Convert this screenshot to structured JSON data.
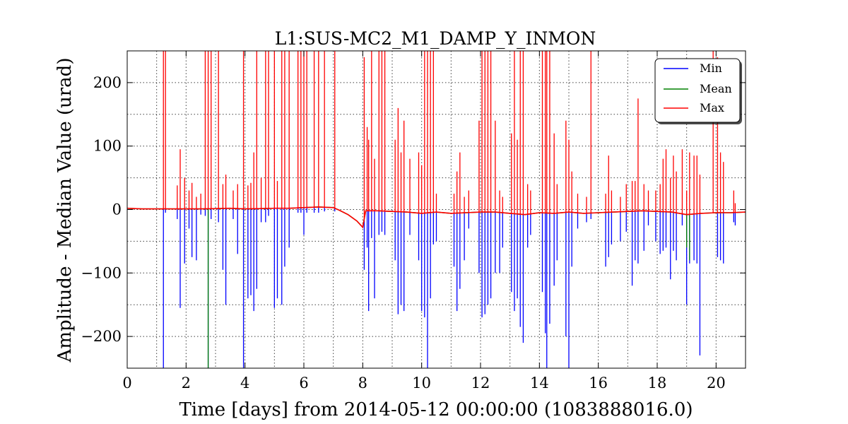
{
  "chart_data": {
    "type": "line",
    "title": "L1:SUS-MC2_M1_DAMP_Y_INMON",
    "xlabel": "Time [days] from 2014-05-12 00:00:00 (1083888016.0)",
    "ylabel": "Amplitude - Median Value (urad)",
    "xlim": [
      0,
      21
    ],
    "ylim": [
      -250,
      250
    ],
    "grid": true,
    "legend_position": "top-right",
    "x_ticks": [
      0,
      2,
      4,
      6,
      8,
      10,
      12,
      14,
      16,
      18,
      20
    ],
    "y_ticks": [
      -200,
      -100,
      0,
      100,
      200
    ],
    "y_tick_labels": [
      "−200",
      "−100",
      "0",
      "100",
      "200"
    ],
    "series": [
      {
        "name": "Min",
        "color": "#0000ff"
      },
      {
        "name": "Mean",
        "color": "#008000"
      },
      {
        "name": "Max",
        "color": "#ff0000"
      }
    ],
    "baseline": [
      [
        0,
        2
      ],
      [
        0.5,
        1
      ],
      [
        1,
        1
      ],
      [
        1.5,
        1
      ],
      [
        2,
        1
      ],
      [
        2.5,
        1
      ],
      [
        3,
        1.5
      ],
      [
        3.5,
        2
      ],
      [
        4,
        1
      ],
      [
        4.5,
        1.5
      ],
      [
        5,
        2
      ],
      [
        5.5,
        2
      ],
      [
        6,
        3
      ],
      [
        6.5,
        4
      ],
      [
        7,
        3
      ],
      [
        7.2,
        -1
      ],
      [
        7.5,
        -8
      ],
      [
        7.8,
        -18
      ],
      [
        8,
        -28
      ],
      [
        8.1,
        -2
      ],
      [
        8.5,
        -2
      ],
      [
        9,
        -3
      ],
      [
        9.5,
        -4
      ],
      [
        10,
        -6
      ],
      [
        10.5,
        -4
      ],
      [
        11,
        -6
      ],
      [
        11.5,
        -5
      ],
      [
        12,
        -4
      ],
      [
        12.5,
        -4
      ],
      [
        13,
        -6
      ],
      [
        13.5,
        -8
      ],
      [
        14,
        -5
      ],
      [
        14.5,
        -6
      ],
      [
        15,
        -4
      ],
      [
        15.5,
        -6
      ],
      [
        16,
        -5
      ],
      [
        16.5,
        -4
      ],
      [
        17,
        -3
      ],
      [
        17.5,
        -2
      ],
      [
        18,
        -3
      ],
      [
        18.5,
        -4
      ],
      [
        19,
        -8
      ],
      [
        19.5,
        -6
      ],
      [
        20,
        -5
      ],
      [
        20.5,
        -5
      ],
      [
        21,
        -4
      ]
    ],
    "spikes": [
      {
        "x": 1.23,
        "min": -250,
        "max": 250
      },
      {
        "x": 1.3,
        "min": -5,
        "max": 250
      },
      {
        "x": 1.7,
        "min": -15,
        "max": 38
      },
      {
        "x": 1.8,
        "min": -155,
        "max": 95
      },
      {
        "x": 1.95,
        "min": -85,
        "max": 50
      },
      {
        "x": 2.1,
        "min": -30,
        "max": 30
      },
      {
        "x": 2.2,
        "min": -75,
        "max": 42
      },
      {
        "x": 2.35,
        "min": -80,
        "max": 20
      },
      {
        "x": 2.5,
        "min": -8,
        "max": 25
      },
      {
        "x": 2.65,
        "min": -10,
        "max": 250
      },
      {
        "x": 2.75,
        "min": -250,
        "max": 250
      },
      {
        "x": 2.85,
        "min": -15,
        "max": 250
      },
      {
        "x": 3.1,
        "min": -20,
        "max": 250
      },
      {
        "x": 3.25,
        "min": -95,
        "max": 40
      },
      {
        "x": 3.35,
        "min": -150,
        "max": 55
      },
      {
        "x": 3.6,
        "min": -15,
        "max": 30
      },
      {
        "x": 3.75,
        "min": -70,
        "max": 40
      },
      {
        "x": 3.95,
        "min": -250,
        "max": 250
      },
      {
        "x": 4.1,
        "min": -140,
        "max": 38
      },
      {
        "x": 4.2,
        "min": -135,
        "max": 42
      },
      {
        "x": 4.3,
        "min": -160,
        "max": 90
      },
      {
        "x": 4.4,
        "min": -125,
        "max": 250
      },
      {
        "x": 4.55,
        "min": -20,
        "max": 50
      },
      {
        "x": 4.7,
        "min": -20,
        "max": 250
      },
      {
        "x": 4.8,
        "min": -10,
        "max": 250
      },
      {
        "x": 5.0,
        "min": -155,
        "max": 250
      },
      {
        "x": 5.1,
        "min": -140,
        "max": 45
      },
      {
        "x": 5.25,
        "min": -150,
        "max": 250
      },
      {
        "x": 5.35,
        "min": -90,
        "max": 250
      },
      {
        "x": 5.5,
        "min": -60,
        "max": 250
      },
      {
        "x": 5.8,
        "min": -5,
        "max": 250
      },
      {
        "x": 5.9,
        "min": -5,
        "max": 250
      },
      {
        "x": 6.0,
        "min": -40,
        "max": 250
      },
      {
        "x": 6.1,
        "min": -5,
        "max": 250
      },
      {
        "x": 6.35,
        "min": -5,
        "max": 250
      },
      {
        "x": 6.5,
        "min": -5,
        "max": 250
      },
      {
        "x": 6.7,
        "min": -3,
        "max": 250
      },
      {
        "x": 7.05,
        "min": -3,
        "max": 250
      },
      {
        "x": 8.05,
        "min": -95,
        "max": 240
      },
      {
        "x": 8.15,
        "min": -60,
        "max": 130
      },
      {
        "x": 8.2,
        "min": -160,
        "max": 110
      },
      {
        "x": 8.3,
        "min": -45,
        "max": 250
      },
      {
        "x": 8.4,
        "min": -140,
        "max": 80
      },
      {
        "x": 8.55,
        "min": -40,
        "max": 250
      },
      {
        "x": 8.65,
        "min": -35,
        "max": 250
      },
      {
        "x": 8.75,
        "min": -40,
        "max": 250
      },
      {
        "x": 9.1,
        "min": -80,
        "max": 110
      },
      {
        "x": 9.2,
        "min": -165,
        "max": 160
      },
      {
        "x": 9.3,
        "min": -150,
        "max": 90
      },
      {
        "x": 9.4,
        "min": -160,
        "max": 140
      },
      {
        "x": 9.6,
        "min": -40,
        "max": 80
      },
      {
        "x": 9.9,
        "min": -80,
        "max": 90
      },
      {
        "x": 10.0,
        "min": -160,
        "max": 70
      },
      {
        "x": 10.1,
        "min": -170,
        "max": 250
      },
      {
        "x": 10.2,
        "min": -250,
        "max": 250
      },
      {
        "x": 10.3,
        "min": -140,
        "max": 250
      },
      {
        "x": 10.4,
        "min": -55,
        "max": 250
      },
      {
        "x": 10.5,
        "min": -50,
        "max": 25
      },
      {
        "x": 11.1,
        "min": -90,
        "max": 25
      },
      {
        "x": 11.2,
        "min": -160,
        "max": 60
      },
      {
        "x": 11.3,
        "min": -125,
        "max": 90
      },
      {
        "x": 11.45,
        "min": -80,
        "max": 20
      },
      {
        "x": 11.6,
        "min": -30,
        "max": 30
      },
      {
        "x": 11.95,
        "min": -100,
        "max": 140
      },
      {
        "x": 12.05,
        "min": -170,
        "max": 250
      },
      {
        "x": 12.15,
        "min": -165,
        "max": 250
      },
      {
        "x": 12.25,
        "min": -150,
        "max": 250
      },
      {
        "x": 12.35,
        "min": -140,
        "max": 250
      },
      {
        "x": 12.5,
        "min": -100,
        "max": 140
      },
      {
        "x": 12.65,
        "min": -100,
        "max": 30
      },
      {
        "x": 12.75,
        "min": -60,
        "max": 20
      },
      {
        "x": 13.05,
        "min": -130,
        "max": 120
      },
      {
        "x": 13.15,
        "min": -160,
        "max": 250
      },
      {
        "x": 13.25,
        "min": -140,
        "max": 110
      },
      {
        "x": 13.35,
        "min": -185,
        "max": 250
      },
      {
        "x": 13.45,
        "min": -210,
        "max": 250
      },
      {
        "x": 13.6,
        "min": -60,
        "max": 40
      },
      {
        "x": 13.7,
        "min": -40,
        "max": 30
      },
      {
        "x": 14.1,
        "min": -130,
        "max": 250
      },
      {
        "x": 14.2,
        "min": -195,
        "max": 250
      },
      {
        "x": 14.25,
        "min": -250,
        "max": 250
      },
      {
        "x": 14.35,
        "min": -180,
        "max": 250
      },
      {
        "x": 14.5,
        "min": -120,
        "max": 120
      },
      {
        "x": 14.6,
        "min": -80,
        "max": 40
      },
      {
        "x": 14.9,
        "min": -200,
        "max": 140
      },
      {
        "x": 15.0,
        "min": -250,
        "max": 110
      },
      {
        "x": 15.1,
        "min": -90,
        "max": 60
      },
      {
        "x": 15.3,
        "min": -30,
        "max": 25
      },
      {
        "x": 15.6,
        "min": -20,
        "max": 20
      },
      {
        "x": 15.75,
        "min": -15,
        "max": 250
      },
      {
        "x": 16.25,
        "min": -90,
        "max": 25
      },
      {
        "x": 16.35,
        "min": -75,
        "max": 85
      },
      {
        "x": 16.45,
        "min": -55,
        "max": 30
      },
      {
        "x": 16.75,
        "min": -50,
        "max": 20
      },
      {
        "x": 16.95,
        "min": -35,
        "max": 40
      },
      {
        "x": 17.15,
        "min": -120,
        "max": 45
      },
      {
        "x": 17.25,
        "min": -80,
        "max": 45
      },
      {
        "x": 17.35,
        "min": -85,
        "max": 175
      },
      {
        "x": 17.55,
        "min": -65,
        "max": 40
      },
      {
        "x": 17.7,
        "min": -25,
        "max": 30
      },
      {
        "x": 17.95,
        "min": -50,
        "max": 30
      },
      {
        "x": 18.1,
        "min": -70,
        "max": 40
      },
      {
        "x": 18.2,
        "min": -65,
        "max": 80
      },
      {
        "x": 18.3,
        "min": -60,
        "max": 95
      },
      {
        "x": 18.45,
        "min": -110,
        "max": 50
      },
      {
        "x": 18.55,
        "min": -65,
        "max": 85
      },
      {
        "x": 18.65,
        "min": -80,
        "max": 60
      },
      {
        "x": 18.85,
        "min": -25,
        "max": 95
      },
      {
        "x": 19.0,
        "min": -150,
        "max": 30
      },
      {
        "x": 19.1,
        "min": -85,
        "max": 90
      },
      {
        "x": 19.25,
        "min": -80,
        "max": 85
      },
      {
        "x": 19.35,
        "min": -85,
        "max": 85
      },
      {
        "x": 19.45,
        "min": -230,
        "max": 55
      },
      {
        "x": 19.9,
        "min": -5,
        "max": 250
      },
      {
        "x": 20.05,
        "min": -75,
        "max": 240
      },
      {
        "x": 20.15,
        "min": -80,
        "max": 90
      },
      {
        "x": 20.25,
        "min": -85,
        "max": 75
      },
      {
        "x": 20.6,
        "min": -20,
        "max": 30
      },
      {
        "x": 20.65,
        "min": -25,
        "max": 10
      }
    ],
    "mean_spikes": [
      {
        "x": 2.75,
        "y": -250
      },
      {
        "x": 19.1,
        "y": -80
      },
      {
        "x": 19.0,
        "y": -60
      }
    ]
  }
}
